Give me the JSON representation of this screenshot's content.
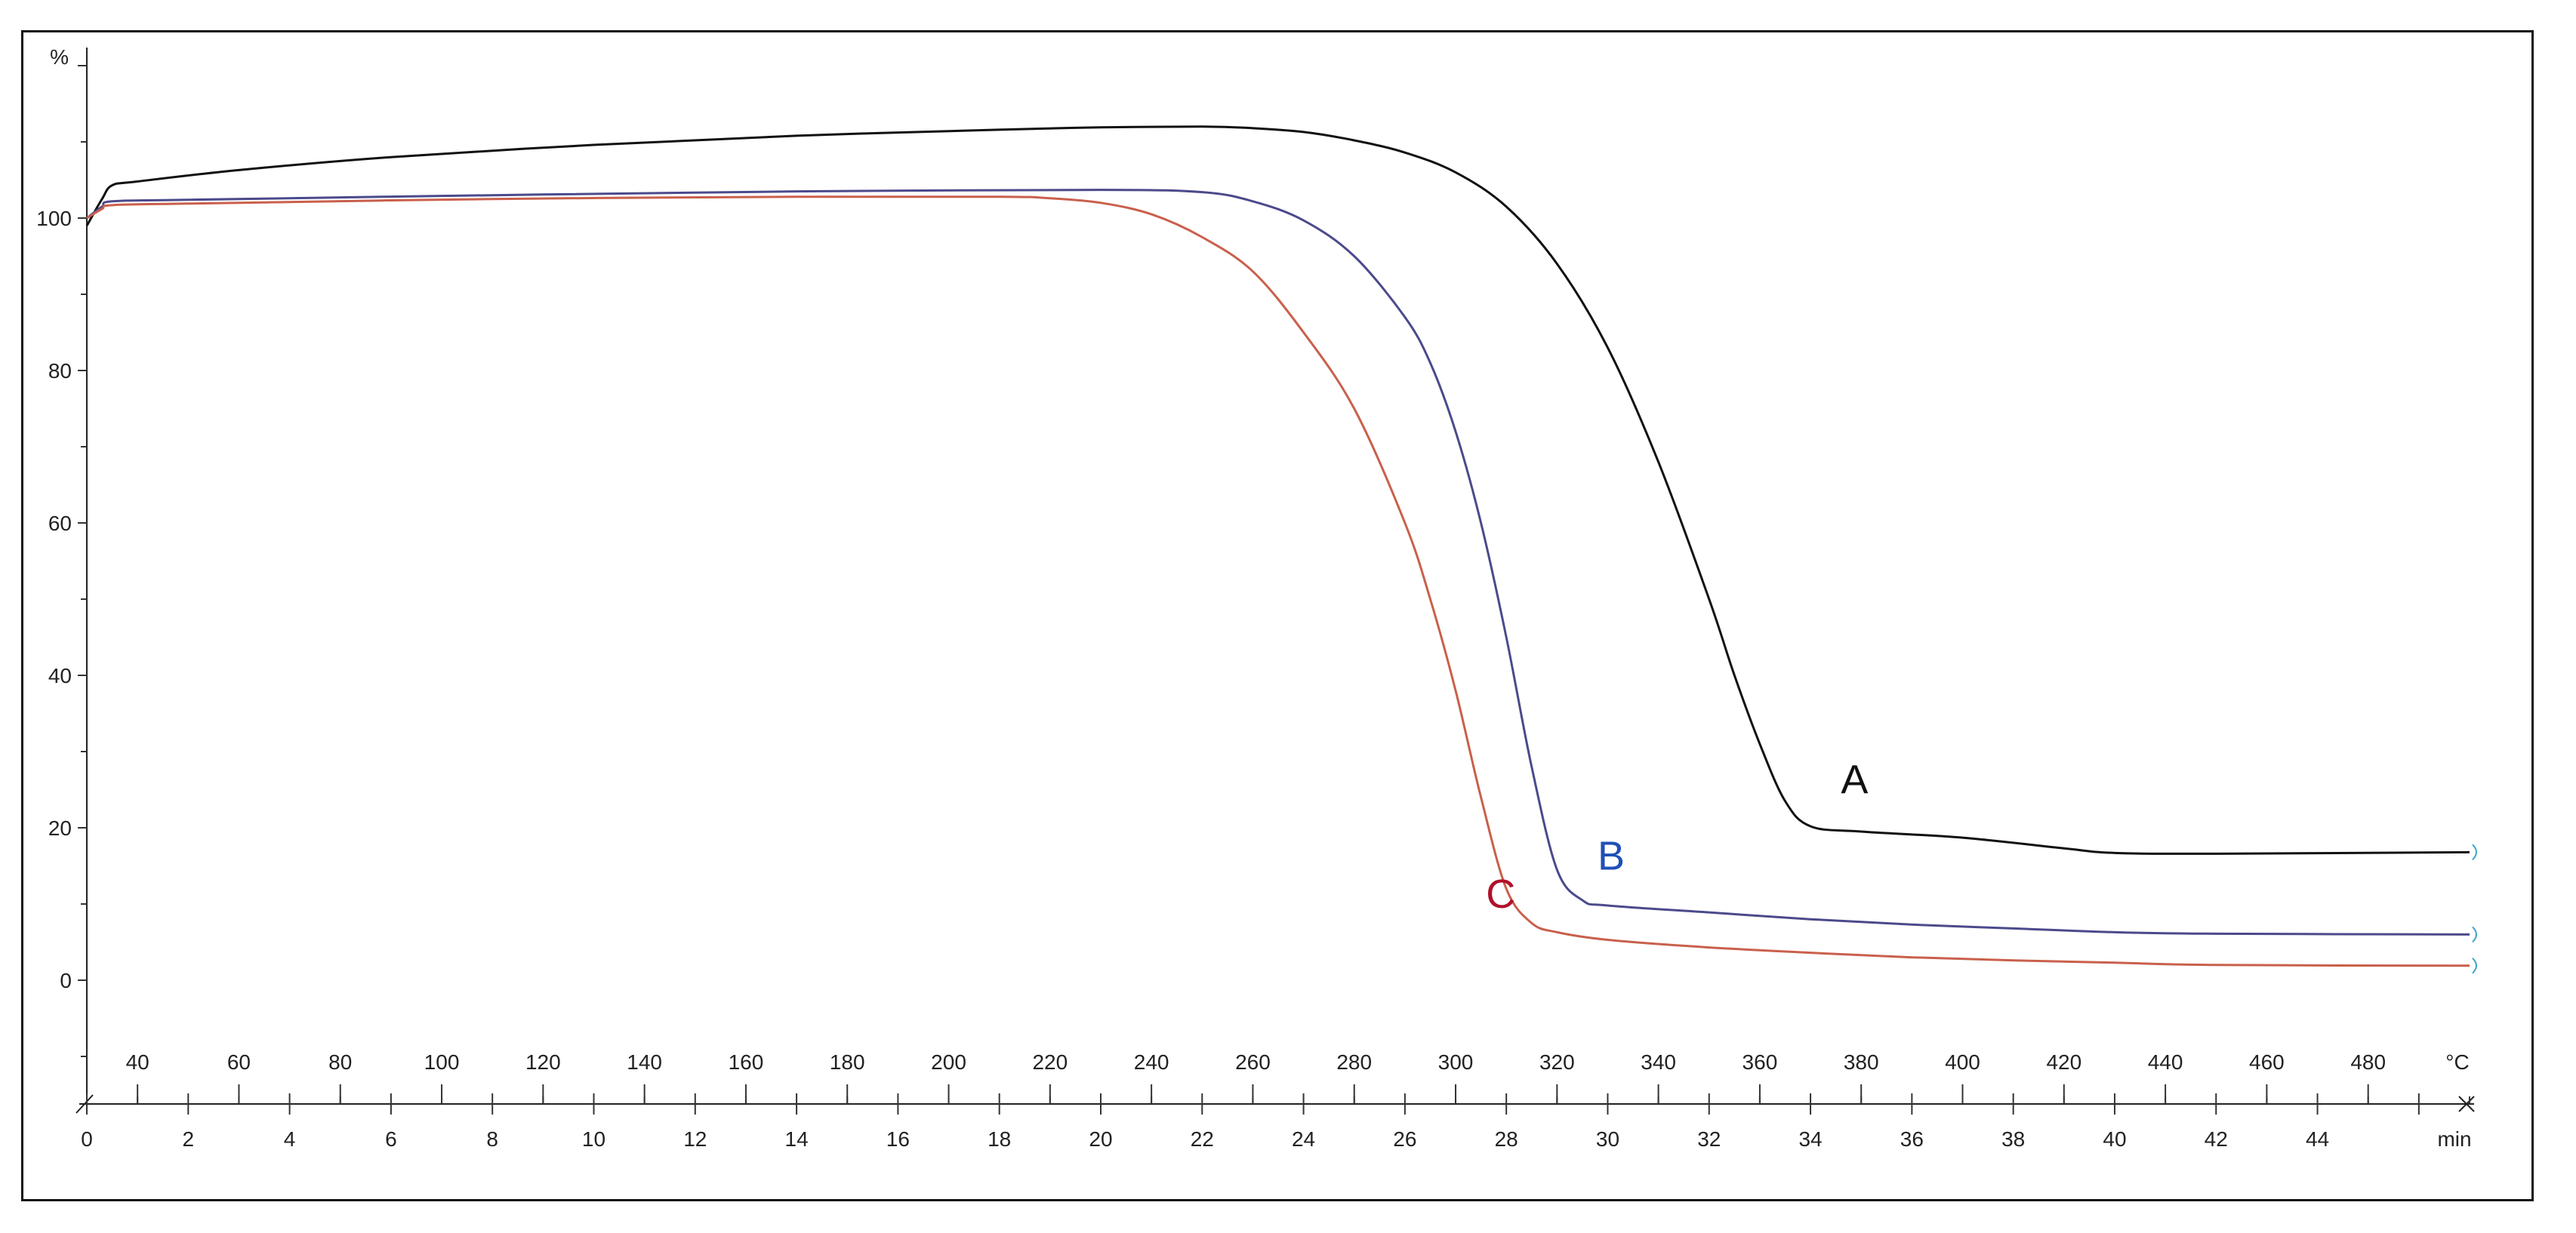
{
  "chart_data": {
    "type": "line",
    "title": "",
    "ylabel": "%",
    "xlabel_primary": "min",
    "xlabel_secondary": "°C",
    "ylim": [
      -10,
      120
    ],
    "xlim_min": [
      0,
      47
    ],
    "xlim_temp": [
      30,
      500
    ],
    "y_ticks": [
      "0",
      "20",
      "40",
      "60",
      "80",
      "100"
    ],
    "y_tick_values": [
      0,
      20,
      40,
      60,
      80,
      100
    ],
    "min_ticks": [
      "0",
      "2",
      "4",
      "6",
      "8",
      "10",
      "12",
      "14",
      "16",
      "18",
      "20",
      "22",
      "24",
      "26",
      "28",
      "30",
      "32",
      "34",
      "36",
      "38",
      "40",
      "42",
      "44"
    ],
    "min_tick_values": [
      0,
      2,
      4,
      6,
      8,
      10,
      12,
      14,
      16,
      18,
      20,
      22,
      24,
      26,
      28,
      30,
      32,
      34,
      36,
      38,
      40,
      42,
      44
    ],
    "temp_ticks": [
      "40",
      "60",
      "80",
      "100",
      "120",
      "140",
      "160",
      "180",
      "200",
      "220",
      "240",
      "260",
      "280",
      "300",
      "320",
      "340",
      "360",
      "380",
      "400",
      "420",
      "440",
      "460",
      "480"
    ],
    "temp_tick_values": [
      40,
      60,
      80,
      100,
      120,
      140,
      160,
      180,
      200,
      220,
      240,
      260,
      280,
      300,
      320,
      340,
      360,
      380,
      400,
      420,
      440,
      460,
      480
    ],
    "series": [
      {
        "label": "A",
        "color": "#111111",
        "label_color": "#111111",
        "label_at": [
          34.6,
          24.5
        ],
        "points": [
          [
            0,
            99
          ],
          [
            0.3,
            102.5
          ],
          [
            0.5,
            104.3
          ],
          [
            1,
            104.8
          ],
          [
            3,
            106.3
          ],
          [
            6,
            108
          ],
          [
            10,
            109.6
          ],
          [
            14,
            110.8
          ],
          [
            18,
            111.6
          ],
          [
            20,
            111.9
          ],
          [
            22,
            112
          ],
          [
            23,
            111.8
          ],
          [
            24,
            111.3
          ],
          [
            25,
            110.2
          ],
          [
            26,
            108.6
          ],
          [
            27,
            106
          ],
          [
            28,
            101.5
          ],
          [
            29,
            94
          ],
          [
            30,
            83
          ],
          [
            31,
            68
          ],
          [
            32,
            50
          ],
          [
            32.5,
            40
          ],
          [
            33,
            31
          ],
          [
            33.5,
            23.5
          ],
          [
            34,
            20.2
          ],
          [
            35,
            19.5
          ],
          [
            37,
            18.7
          ],
          [
            39,
            17.3
          ],
          [
            40,
            16.7
          ],
          [
            42,
            16.6
          ],
          [
            47,
            16.8
          ]
        ]
      },
      {
        "label": "B",
        "color": "#4b4a8c",
        "label_color": "#1f4fb8",
        "label_at": [
          29.8,
          14.5
        ],
        "points": [
          [
            0,
            100
          ],
          [
            0.3,
            101.5
          ],
          [
            0.5,
            102.2
          ],
          [
            2,
            102.4
          ],
          [
            8,
            103
          ],
          [
            14,
            103.5
          ],
          [
            20,
            103.7
          ],
          [
            22,
            103.4
          ],
          [
            23,
            102.2
          ],
          [
            24,
            99.7
          ],
          [
            25,
            95
          ],
          [
            26,
            87
          ],
          [
            26.5,
            81
          ],
          [
            27,
            72
          ],
          [
            27.5,
            60
          ],
          [
            28,
            45
          ],
          [
            28.5,
            28
          ],
          [
            29,
            14.5
          ],
          [
            29.5,
            10.5
          ],
          [
            30,
            9.8
          ],
          [
            32,
            8.9
          ],
          [
            34,
            8
          ],
          [
            36,
            7.3
          ],
          [
            38,
            6.8
          ],
          [
            40,
            6.3
          ],
          [
            42,
            6.1
          ],
          [
            47,
            6
          ]
        ]
      },
      {
        "label": "C",
        "color": "#c9604c",
        "label_color": "#b0102a",
        "label_at": [
          27.6,
          9.5
        ],
        "points": [
          [
            0,
            100
          ],
          [
            0.3,
            101.2
          ],
          [
            0.5,
            101.7
          ],
          [
            2,
            101.9
          ],
          [
            8,
            102.5
          ],
          [
            14,
            102.8
          ],
          [
            18,
            102.8
          ],
          [
            19,
            102.6
          ],
          [
            20,
            102
          ],
          [
            21,
            100.5
          ],
          [
            22,
            97.5
          ],
          [
            23,
            93
          ],
          [
            24,
            85
          ],
          [
            25,
            75
          ],
          [
            26,
            60
          ],
          [
            26.5,
            50
          ],
          [
            27,
            38
          ],
          [
            27.5,
            24
          ],
          [
            28,
            12
          ],
          [
            28.5,
            7.5
          ],
          [
            29,
            6.3
          ],
          [
            30,
            5.3
          ],
          [
            32,
            4.3
          ],
          [
            34,
            3.6
          ],
          [
            36,
            3
          ],
          [
            38,
            2.6
          ],
          [
            40,
            2.3
          ],
          [
            42,
            2
          ],
          [
            47,
            1.9
          ]
        ]
      }
    ]
  }
}
